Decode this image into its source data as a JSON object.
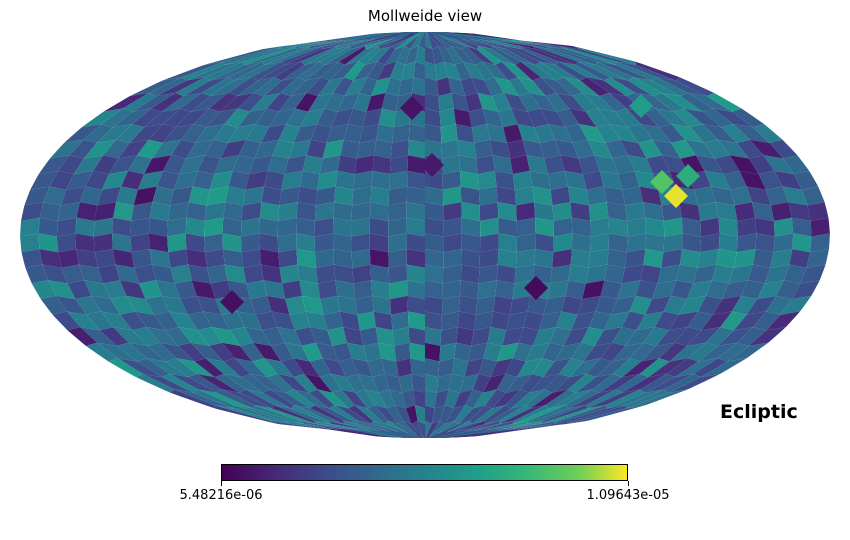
{
  "title": "Mollweide view",
  "coord_label": "Ecliptic",
  "colorbar": {
    "colormap": "viridis",
    "min_label": "5.48216e-06",
    "max_label": "1.09643e-05"
  },
  "colors": {
    "viridis_low": "#440154",
    "viridis_mid": "#21918c",
    "viridis_high": "#fde725",
    "background": "#ffffff"
  }
}
